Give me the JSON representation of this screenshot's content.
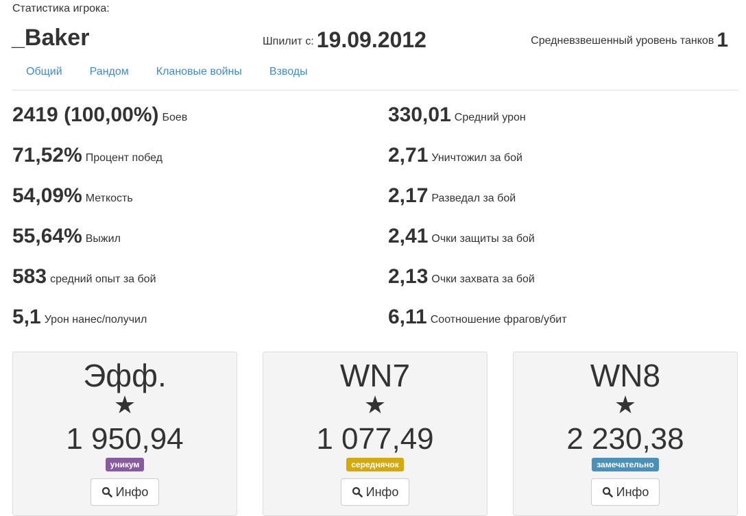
{
  "caption": "Статистика игрока:",
  "player": "_Baker",
  "since_label": "Шпилит с:",
  "since_value": "19.09.2012",
  "level_label": "Средневзвешенный уровень танков",
  "level_value": "1",
  "tabs": [
    "Общий",
    "Рандом",
    "Клановые войны",
    "Взводы"
  ],
  "left_stats": [
    {
      "value": "2419 (100,00%)",
      "label": "Боев"
    },
    {
      "value": "71,52%",
      "label": "Процент побед"
    },
    {
      "value": "54,09%",
      "label": "Меткость"
    },
    {
      "value": "55,64%",
      "label": "Выжил"
    },
    {
      "value": "583",
      "label": "средний опыт за бой"
    },
    {
      "value": "5,1",
      "label": "Урон нанес/получил"
    }
  ],
  "right_stats": [
    {
      "value": "330,01",
      "label": "Средний урон"
    },
    {
      "value": "2,71",
      "label": "Уничтожил за бой"
    },
    {
      "value": "2,17",
      "label": "Разведал за бой"
    },
    {
      "value": "2,41",
      "label": "Очки защиты за бой"
    },
    {
      "value": "2,13",
      "label": "Очки захвата за бой"
    },
    {
      "value": "6,11",
      "label": "Соотношение фрагов/убит"
    }
  ],
  "cards": [
    {
      "title": "Эфф.",
      "star": "★",
      "value": "1 950,94",
      "badge": "уникум",
      "badge_color": "#8a5a9e",
      "button": "Инфо"
    },
    {
      "title": "WN7",
      "star": "★",
      "value": "1 077,49",
      "badge": "середнячок",
      "badge_color": "#d4a90e",
      "button": "Инфо"
    },
    {
      "title": "WN8",
      "star": "★",
      "value": "2 230,38",
      "badge": "замечательно",
      "badge_color": "#4a90b8",
      "button": "Инфо"
    }
  ]
}
